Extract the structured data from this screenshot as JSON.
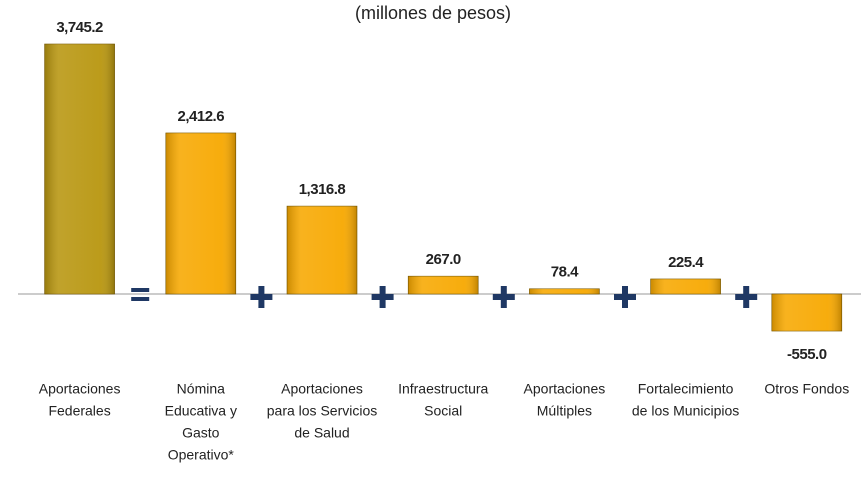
{
  "chart_data": {
    "type": "bar",
    "subtitle": "(millones de pesos)",
    "categories": [
      [
        "Aportaciones",
        "Federales"
      ],
      [
        "Nómina",
        "Educativa y",
        "Gasto",
        "Operativo*"
      ],
      [
        "Aportaciones",
        "para los Servicios",
        "de Salud"
      ],
      [
        "Infraestructura",
        "Social"
      ],
      [
        "Aportaciones",
        "Múltiples"
      ],
      [
        "Fortalecimiento",
        "de los Municipios"
      ],
      [
        "Otros Fondos"
      ]
    ],
    "values": [
      3745.2,
      2412.6,
      1316.8,
      267.0,
      78.4,
      225.4,
      -555.0
    ],
    "value_labels": [
      "3,745.2",
      "2,412.6",
      "1,316.8",
      "267.0",
      "78.4",
      "225.4",
      "-555.0"
    ],
    "colors": [
      "#b8960f",
      "#f7a800",
      "#f7a800",
      "#f7a800",
      "#f7a800",
      "#f7a800",
      "#f7a800"
    ]
  }
}
